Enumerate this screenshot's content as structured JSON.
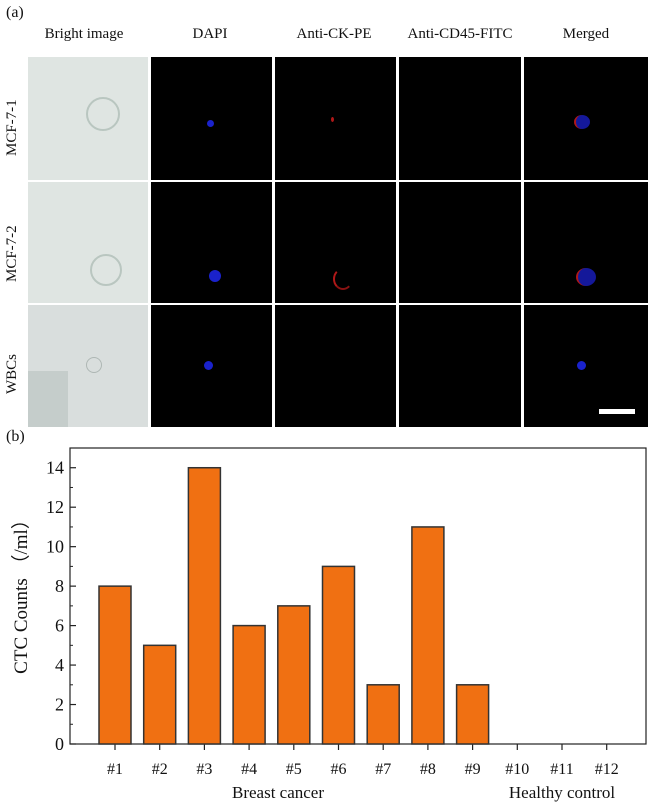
{
  "figure": {
    "panel_a_label": "(a)",
    "panel_b_label": "(b)",
    "columns": [
      "Bright image",
      "DAPI",
      "Anti-CK-PE",
      "Anti-CD45-FITC",
      "Merged"
    ],
    "rows": [
      "MCF-7-1",
      "MCF-7-2",
      "WBCs"
    ]
  },
  "colors": {
    "bar_fill": "#f07012",
    "bar_stroke": "#333333",
    "tile_background": "#000000",
    "bright_field": "#dfe5e2",
    "dapi_blue": "#1a22cc",
    "pe_red": "#b01818"
  },
  "chart_data": {
    "type": "bar",
    "categories": [
      "#1",
      "#2",
      "#3",
      "#4",
      "#5",
      "#6",
      "#7",
      "#8",
      "#9",
      "#10",
      "#11",
      "#12"
    ],
    "values": [
      8,
      5,
      14,
      6,
      7,
      9,
      3,
      11,
      3,
      0,
      0,
      0
    ],
    "ylabel": "CTC Counts （/ml）",
    "xlabel": "",
    "ylim": [
      0,
      15
    ],
    "yticks": [
      0,
      2,
      4,
      6,
      8,
      10,
      12,
      14
    ],
    "groups": [
      {
        "label": "Breast cancer",
        "categories": [
          "#1",
          "#2",
          "#3",
          "#4",
          "#5",
          "#6",
          "#7",
          "#8",
          "#9"
        ]
      },
      {
        "label": "Healthy control",
        "categories": [
          "#10",
          "#11",
          "#12"
        ]
      }
    ]
  }
}
